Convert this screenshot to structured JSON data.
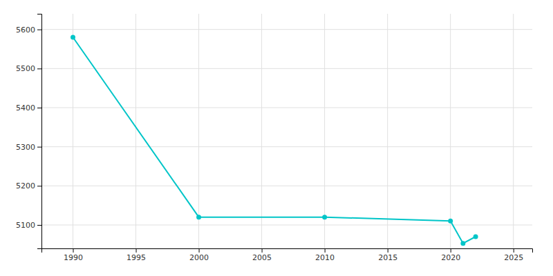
{
  "chart_data": {
    "type": "line",
    "x": [
      1990,
      2000,
      2010,
      2020,
      2021,
      2022
    ],
    "values": [
      5580,
      5120,
      5120,
      5110,
      5053,
      5070
    ],
    "color": "#00C5C8",
    "marker": "circle",
    "xlim": [
      1987.5,
      2026.5
    ],
    "ylim": [
      5040,
      5640
    ],
    "xticks": [
      1990,
      1995,
      2000,
      2005,
      2010,
      2015,
      2020,
      2025
    ],
    "yticks": [
      5100,
      5200,
      5300,
      5400,
      5500,
      5600
    ],
    "grid": true
  }
}
